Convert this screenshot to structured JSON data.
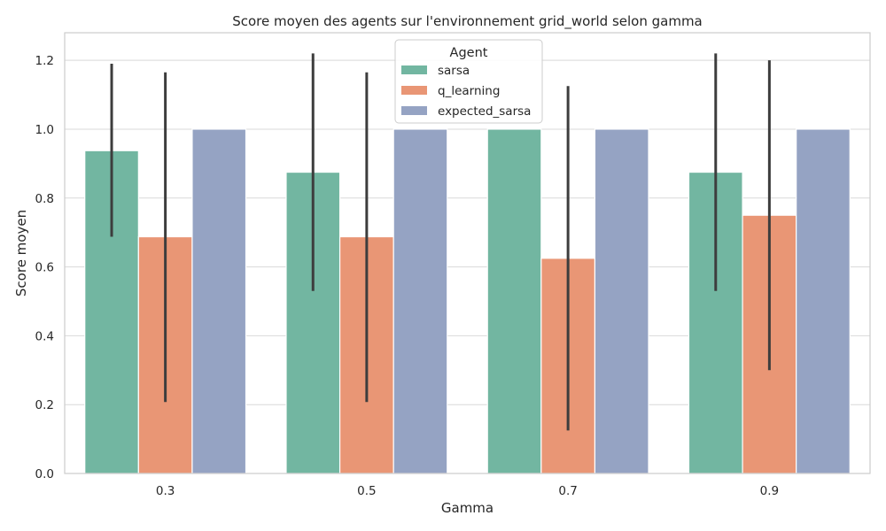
{
  "chart_data": {
    "type": "bar",
    "title": "Score moyen des agents sur l'environnement grid_world selon gamma",
    "xlabel": "Gamma",
    "ylabel": "Score moyen",
    "categories": [
      "0.3",
      "0.5",
      "0.7",
      "0.9"
    ],
    "ylim": [
      0,
      1.28
    ],
    "yticks": [
      "0.0",
      "0.2",
      "0.4",
      "0.6",
      "0.8",
      "1.0",
      "1.2"
    ],
    "grid": true,
    "legend": {
      "title": "Agent",
      "position": "top-center"
    },
    "series": [
      {
        "name": "sarsa",
        "color": "#72b6a1",
        "values": [
          0.9375,
          0.875,
          1.0,
          0.875
        ],
        "err_low": [
          0.6875,
          0.53,
          null,
          0.53
        ],
        "err_high": [
          1.19,
          1.22,
          null,
          1.22
        ]
      },
      {
        "name": "q_learning",
        "color": "#e99675",
        "values": [
          0.6875,
          0.6875,
          0.625,
          0.75
        ],
        "err_low": [
          0.2075,
          0.2075,
          0.125,
          0.3
        ],
        "err_high": [
          1.165,
          1.165,
          1.125,
          1.2
        ]
      },
      {
        "name": "expected_sarsa",
        "color": "#95a3c3",
        "values": [
          1.0,
          1.0,
          1.0,
          1.0
        ],
        "err_low": [
          null,
          null,
          null,
          null
        ],
        "err_high": [
          null,
          null,
          null,
          null
        ]
      }
    ]
  }
}
